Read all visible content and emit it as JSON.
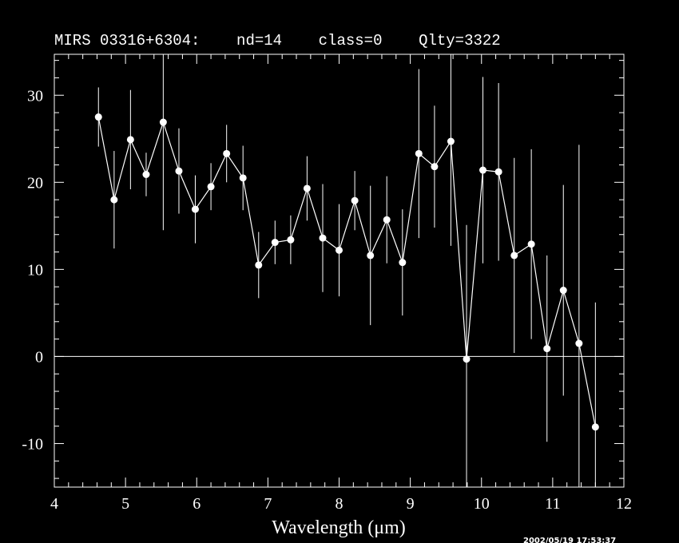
{
  "chart_data": {
    "type": "errorbar",
    "title": "MIRS 03316+6304:    nd=14    class=0    Qlty=3322",
    "x_label": "Wavelength (μm)",
    "timestamp": "2002/05/19 17:53:37",
    "x": [
      4.62,
      4.84,
      5.07,
      5.29,
      5.53,
      5.75,
      5.98,
      6.2,
      6.42,
      6.65,
      6.87,
      7.1,
      7.32,
      7.55,
      7.77,
      8.0,
      8.22,
      8.44,
      8.67,
      8.89,
      9.12,
      9.34,
      9.57,
      9.79,
      10.02,
      10.24,
      10.46,
      10.7,
      10.92,
      11.15,
      11.37,
      11.6
    ],
    "values": [
      27.5,
      18.0,
      24.9,
      20.9,
      26.9,
      21.3,
      16.9,
      19.5,
      23.3,
      20.5,
      10.5,
      13.1,
      13.4,
      19.3,
      13.6,
      12.2,
      17.9,
      11.6,
      15.7,
      10.8,
      23.3,
      21.8,
      24.7,
      -0.3,
      21.4,
      21.2,
      11.6,
      12.9,
      0.9,
      7.6,
      1.5,
      -8.1
    ],
    "errors": [
      3.4,
      5.6,
      5.7,
      2.5,
      12.4,
      4.9,
      3.9,
      2.7,
      3.3,
      3.7,
      3.8,
      2.5,
      2.8,
      3.7,
      6.2,
      5.3,
      3.4,
      8.0,
      5.0,
      6.1,
      9.7,
      7.0,
      12.0,
      15.4,
      10.7,
      10.2,
      11.2,
      10.9,
      10.7,
      12.1,
      22.8,
      14.3
    ],
    "color": "#ffffff",
    "xlim": [
      4,
      12
    ],
    "ylim": [
      -15,
      34.7
    ],
    "xticks": [
      4,
      5,
      6,
      7,
      8,
      9,
      10,
      11,
      12
    ],
    "yticks": [
      -10,
      0,
      10,
      20,
      30
    ],
    "xminor_ticks": [
      4.2,
      4.4,
      4.6,
      4.8,
      5.2,
      5.4,
      5.6,
      5.8,
      6.2,
      6.4,
      6.6,
      6.8,
      7.2,
      7.4,
      7.6,
      7.8,
      8.2,
      8.4,
      8.6,
      8.8,
      9.2,
      9.4,
      9.6,
      9.8,
      10.2,
      10.4,
      10.6,
      10.8,
      11.2,
      11.4,
      11.6,
      11.8
    ],
    "yminor_ticks": [
      -14,
      -12,
      -8,
      -6,
      -4,
      -2,
      2,
      4,
      6,
      8,
      12,
      14,
      16,
      18,
      22,
      24,
      26,
      28,
      32,
      34
    ],
    "zero_line": true
  }
}
